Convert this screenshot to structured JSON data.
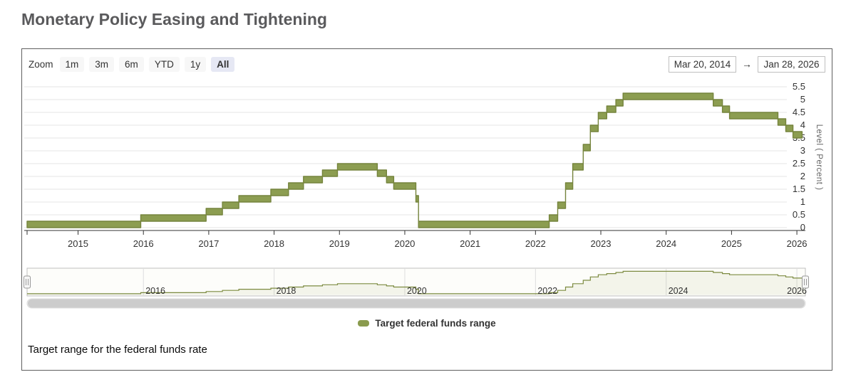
{
  "page_title": "Monetary Policy Easing and Tightening",
  "toolbar": {
    "zoom_label": "Zoom",
    "range_buttons": [
      {
        "label": "1m",
        "selected": false
      },
      {
        "label": "3m",
        "selected": false
      },
      {
        "label": "6m",
        "selected": false
      },
      {
        "label": "YTD",
        "selected": false
      },
      {
        "label": "1y",
        "selected": false
      },
      {
        "label": "All",
        "selected": true
      }
    ],
    "range_from": "Mar 20, 2014",
    "range_separator": "→",
    "range_to": "Jan 28, 2026"
  },
  "legend": {
    "items": [
      {
        "label": "Target federal funds range",
        "color": "#8a9b4e"
      }
    ]
  },
  "footer_caption": "Target range for the federal funds rate",
  "colors": {
    "band_fill": "#8c9d51",
    "band_edge": "#75843d",
    "navigator_line": "#7d8b41",
    "navigator_fill": "rgba(141,158,82,0.09)",
    "grid": "#e6e6e6",
    "axis": "#333333",
    "tick_label": "#333333",
    "axis_title": "#666666",
    "selected_button_bg": "#e6e8f4"
  },
  "chart_data": {
    "type": "arearange",
    "title": "Monetary Policy Easing and Tightening",
    "subtitle": "Target range for the federal funds rate",
    "ylabel": "Level ( Percent )",
    "xlabel": "",
    "xlim": [
      2014.22,
      2026.13
    ],
    "ylim": [
      0,
      5.5
    ],
    "x_ticks": [
      2015,
      2016,
      2017,
      2018,
      2019,
      2020,
      2021,
      2022,
      2023,
      2024,
      2025,
      2026
    ],
    "y_ticks": [
      0,
      0.5,
      1,
      1.5,
      2,
      2.5,
      3,
      3.5,
      4,
      4.5,
      5,
      5.5
    ],
    "grid": true,
    "legend_position": "bottom",
    "navigator_ticks": [
      2016,
      2018,
      2020,
      2022,
      2024,
      2026
    ],
    "series": [
      {
        "name": "Target federal funds range",
        "color": "#8a9b4e",
        "step": true,
        "point_format": "[decimal_year, lower_percent, upper_percent]",
        "points": [
          [
            2014.22,
            0,
            0.25
          ],
          [
            2015.96,
            0.25,
            0.5
          ],
          [
            2016.96,
            0.5,
            0.75
          ],
          [
            2017.21,
            0.75,
            1.0
          ],
          [
            2017.46,
            1.0,
            1.25
          ],
          [
            2017.95,
            1.25,
            1.5
          ],
          [
            2018.22,
            1.5,
            1.75
          ],
          [
            2018.45,
            1.75,
            2.0
          ],
          [
            2018.74,
            2.0,
            2.25
          ],
          [
            2018.97,
            2.25,
            2.5
          ],
          [
            2019.58,
            2.0,
            2.25
          ],
          [
            2019.72,
            1.75,
            2.0
          ],
          [
            2019.83,
            1.5,
            1.75
          ],
          [
            2020.17,
            1.0,
            1.25
          ],
          [
            2020.21,
            0,
            0.25
          ],
          [
            2022.21,
            0.25,
            0.5
          ],
          [
            2022.34,
            0.75,
            1.0
          ],
          [
            2022.46,
            1.5,
            1.75
          ],
          [
            2022.57,
            2.25,
            2.5
          ],
          [
            2022.73,
            3.0,
            3.25
          ],
          [
            2022.84,
            3.75,
            4.0
          ],
          [
            2022.96,
            4.25,
            4.5
          ],
          [
            2023.09,
            4.5,
            4.75
          ],
          [
            2023.23,
            4.75,
            5.0
          ],
          [
            2023.34,
            5.0,
            5.25
          ],
          [
            2024.72,
            4.75,
            5.0
          ],
          [
            2024.86,
            4.5,
            4.75
          ],
          [
            2024.97,
            4.25,
            4.5
          ],
          [
            2025.71,
            4.0,
            4.25
          ],
          [
            2025.83,
            3.75,
            4.0
          ],
          [
            2025.94,
            3.5,
            3.75
          ],
          [
            2026.08,
            3.5,
            3.75
          ]
        ]
      }
    ]
  }
}
